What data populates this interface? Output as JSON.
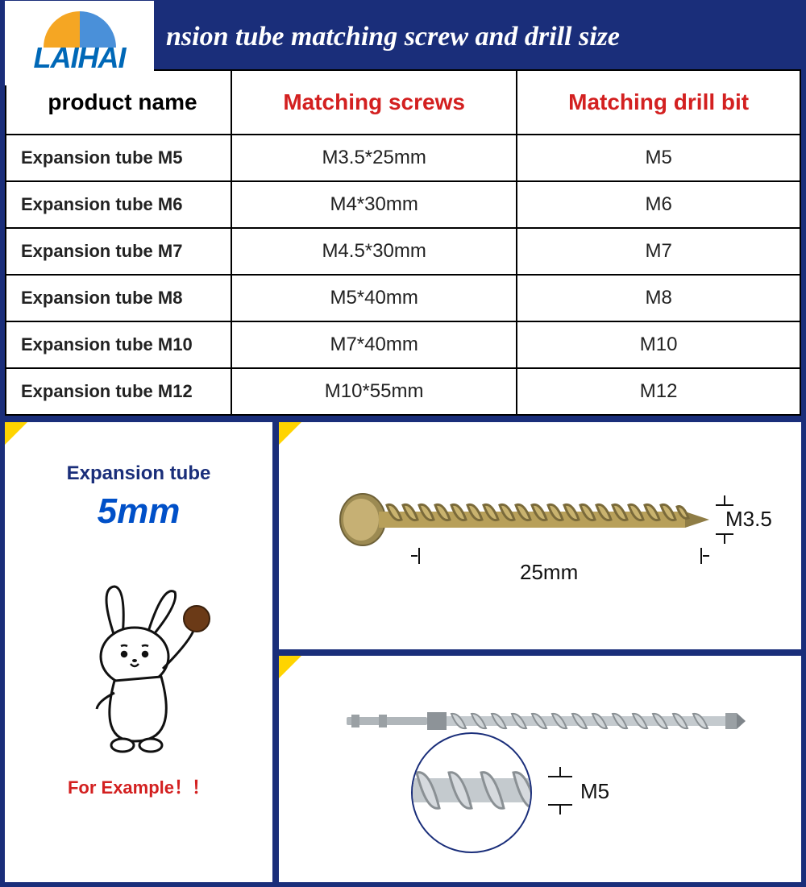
{
  "logo_text": "LAIHAI",
  "title": "nsion tube matching screw and drill size",
  "table": {
    "columns": [
      "product name",
      "Matching screws",
      "Matching drill bit"
    ],
    "header_colors": [
      "#000000",
      "#d32020",
      "#d32020"
    ],
    "col_widths": [
      "280px",
      "auto",
      "auto"
    ],
    "rows": [
      [
        "Expansion tube M5",
        "M3.5*25mm",
        "M5"
      ],
      [
        "Expansion tube M6",
        "M4*30mm",
        "M6"
      ],
      [
        "Expansion tube M7",
        "M4.5*30mm",
        "M7"
      ],
      [
        "Expansion tube M8",
        "M5*40mm",
        "M8"
      ],
      [
        "Expansion tube M10",
        "M7*40mm",
        "M10"
      ],
      [
        "Expansion tube M12",
        "M10*55mm",
        "M12"
      ]
    ]
  },
  "example": {
    "label": "Expansion tube",
    "size": "5mm",
    "caption": "For Example！！",
    "screw_diameter_label": "M3.5",
    "screw_length_label": "25mm",
    "drill_label": "M5"
  },
  "colors": {
    "frame": "#1a2e7a",
    "accent_yellow": "#ffd400",
    "header_red": "#d32020",
    "logo_blue": "#0068b7",
    "screw_color": "#b8a05a",
    "drill_color": "#b0b6ba"
  }
}
